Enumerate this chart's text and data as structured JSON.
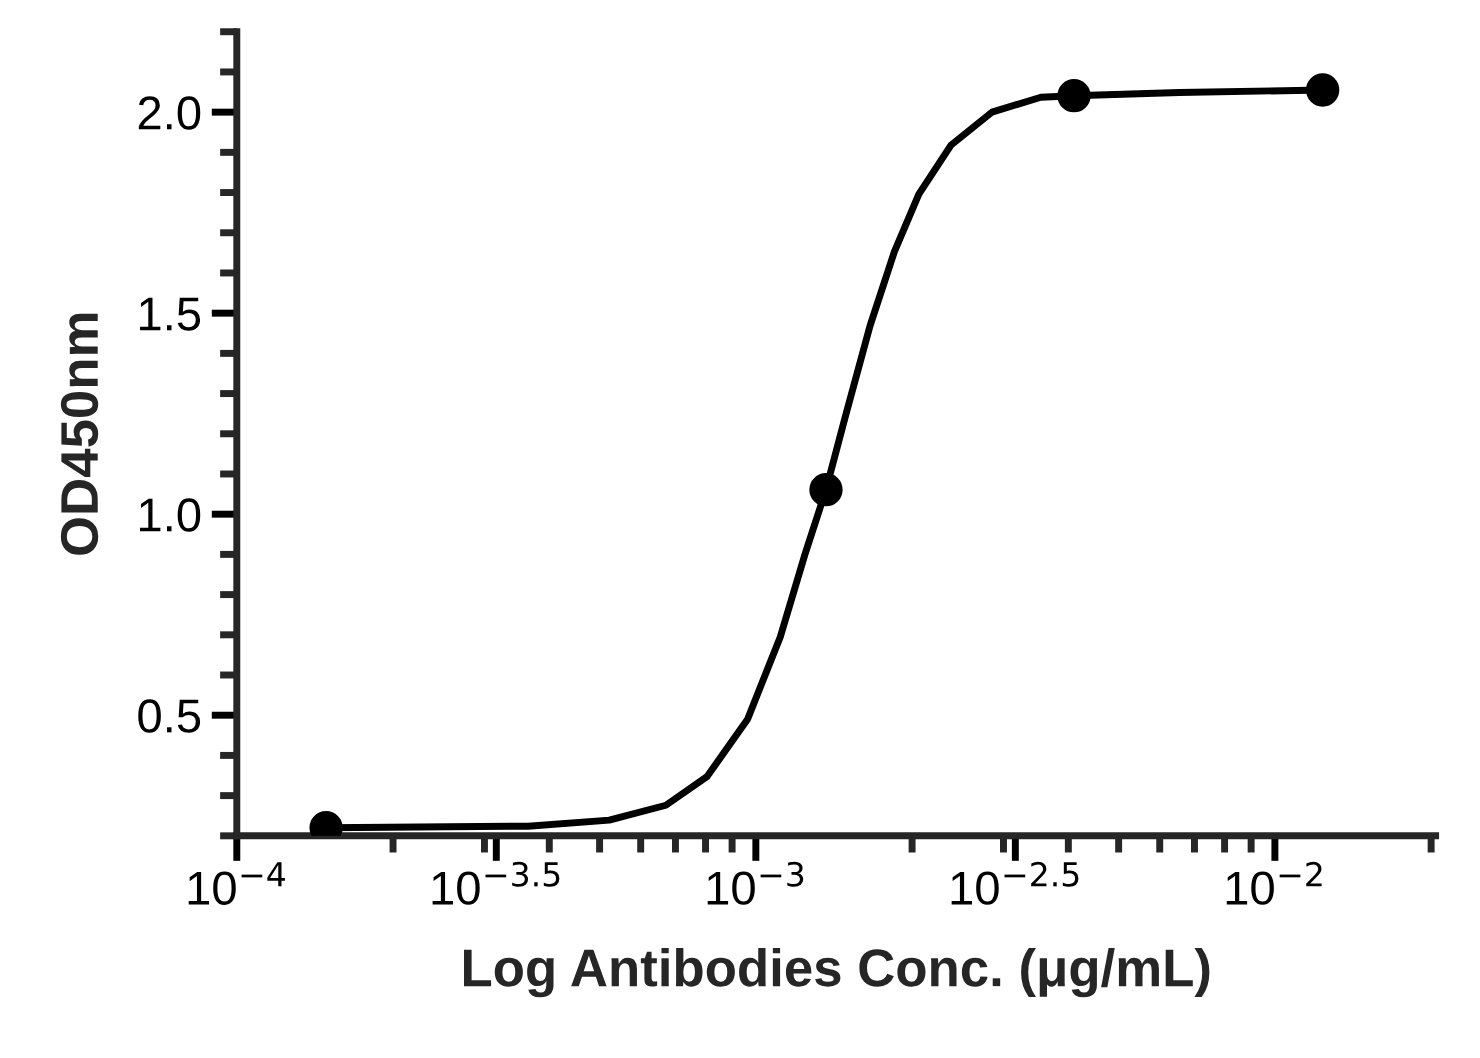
{
  "chart_data": {
    "type": "scatter",
    "xlabel": "Log Antibodies Conc. (μg/mL)",
    "ylabel": "OD450nm",
    "log": "x",
    "marker": "circle",
    "grid": false,
    "xlim": [
      0.0001,
      0.0204
    ],
    "ylim": [
      0.2,
      2.2
    ],
    "xticks": [
      {
        "value": 0.0001,
        "label": "10$^{−4}$"
      },
      {
        "value": 0.0003162,
        "label": "10$^{−3.5}$"
      },
      {
        "value": 0.001,
        "label": "10$^{−3}$"
      },
      {
        "value": 0.003162,
        "label": "10$^{−2.5}$"
      },
      {
        "value": 0.01,
        "label": "10$^{−2}$"
      }
    ],
    "yticks": [
      0.5,
      {
        "value": 1,
        "label": "1.0"
      },
      1.5,
      {
        "value": 2,
        "label": "2.0"
      }
    ],
    "series": [
      {
        "color": "#000000",
        "x": [
          0.0001486,
          0.001365,
          0.004102,
          0.01236
        ],
        "values": [
          0.22,
          1.061,
          2.041,
          2.055
        ]
      },
      {
        "type": "line",
        "color": "#000000",
        "marker": "none",
        "line_style": "solid",
        "x": [
          0.0001486,
          0.000364,
          0.000522,
          0.000671,
          0.000805,
          0.000964,
          0.001114,
          0.001242,
          0.001365,
          0.001489,
          0.00166,
          0.001849,
          0.002061,
          0.002377,
          0.002851,
          0.00354,
          0.004102,
          0.006546,
          0.01236
        ],
        "values": [
          0.22,
          0.224,
          0.239,
          0.276,
          0.347,
          0.49,
          0.694,
          0.898,
          1.061,
          1.245,
          1.469,
          1.653,
          1.796,
          1.918,
          2.0,
          2.037,
          2.041,
          2.049,
          2.055
        ]
      }
    ]
  }
}
